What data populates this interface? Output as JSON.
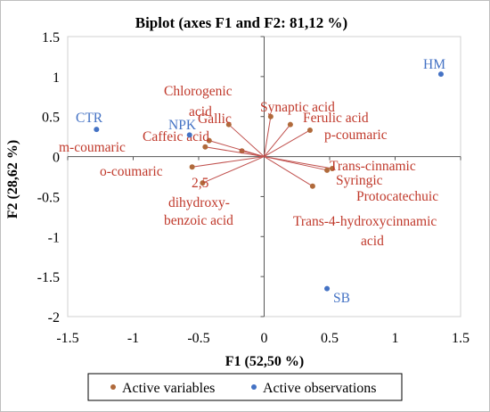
{
  "chart_data": {
    "type": "scatter",
    "title": "Biplot (axes F1 and F2: 81,12 %)",
    "xlabel": "F1 (52,50 %)",
    "ylabel": "F2 (28,62 %)",
    "xlim": [
      -1.5,
      1.5
    ],
    "ylim": [
      -2,
      1.5
    ],
    "x_ticks": [
      "-1.5",
      "-1",
      "-0.5",
      "0",
      "0.5",
      "1",
      "1.5"
    ],
    "y_ticks": [
      "1.5",
      "1",
      "0.5",
      "0",
      "-0.5",
      "-1",
      "-1.5",
      "-2"
    ],
    "grid": false,
    "legend_position": "bottom",
    "legend": [
      "Active variables",
      "Active observations"
    ],
    "colors": {
      "variables": "#c0504d",
      "variable_points": "#b06a3b",
      "observations": "#4472c4"
    },
    "variables": [
      {
        "name": "Chlorogenic acid",
        "x": -0.27,
        "y": 0.4
      },
      {
        "name": "Gallic",
        "x": -0.17,
        "y": 0.07
      },
      {
        "name": "Synaptic acid",
        "x": 0.05,
        "y": 0.5
      },
      {
        "name": "Ferulic acid",
        "x": 0.2,
        "y": 0.4
      },
      {
        "name": "p-coumaric",
        "x": 0.35,
        "y": 0.33
      },
      {
        "name": "Caffeic acid",
        "x": -0.42,
        "y": 0.2
      },
      {
        "name": "m-coumaric",
        "x": -0.45,
        "y": 0.12
      },
      {
        "name": "o-coumaric",
        "x": -0.55,
        "y": -0.13
      },
      {
        "name": "2,5 dihydroxy-benzoic acid",
        "x": -0.47,
        "y": -0.33
      },
      {
        "name": "Trans-cinnamic",
        "x": 0.52,
        "y": -0.15
      },
      {
        "name": "Syringic",
        "x": 0.48,
        "y": -0.17
      },
      {
        "name": "Trans-4-hydroxycinnamic acid",
        "x": 0.37,
        "y": -0.37
      }
    ],
    "observations": [
      {
        "name": "HM",
        "x": 1.35,
        "y": 1.03
      },
      {
        "name": "CTR",
        "x": -1.28,
        "y": 0.34
      },
      {
        "name": "NPK",
        "x": -0.57,
        "y": 0.27
      },
      {
        "name": "SB",
        "x": 0.48,
        "y": -1.65
      }
    ],
    "extra_labels": [
      "Protocatechuic"
    ]
  }
}
